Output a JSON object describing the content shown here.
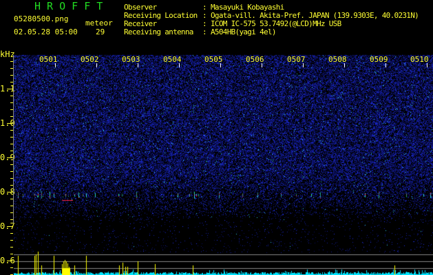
{
  "app_title": "H R O F F T",
  "file_name": "05280500.png",
  "datetime": "02.05.28 05:00",
  "meteor_label": "meteor",
  "meteor_count": "29",
  "info": [
    {
      "label": "Observer",
      "value": "Masayuki Kobayashi"
    },
    {
      "label": "Receiving Location",
      "value": "Ogata-vill. Akita-Pref. JAPAN (139.9303E, 40.0231N)"
    },
    {
      "label": "Receiver",
      "value": "ICOM IC-575 53.7492(@LCD)MHz USB"
    },
    {
      "label": "Receiving antenna",
      "value": "A504HB(yagi 4el)"
    }
  ],
  "separator": ":",
  "y_axis": {
    "unit": "kHz",
    "ticks": [
      "1.1",
      "1.0",
      "0.9",
      "0.8",
      "0.7",
      "0.6"
    ]
  },
  "time_labels": [
    "0501",
    "0502",
    "0503",
    "0504",
    "0505",
    "0506",
    "0507",
    "0508",
    "0509",
    "0510"
  ],
  "colors": {
    "text": "#ffff33",
    "title": "#22dd22",
    "noise": "#1a2acc",
    "echo_bar": "#ffff00",
    "baseline": "#00e5ff"
  }
}
